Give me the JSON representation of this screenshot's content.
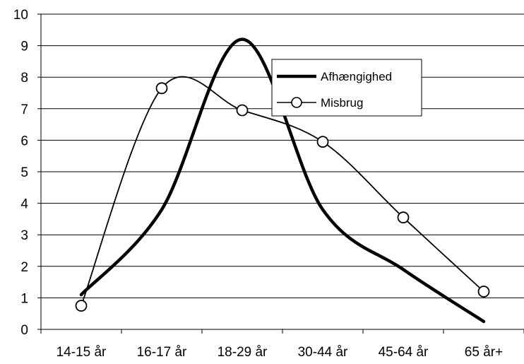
{
  "chart_data": {
    "type": "line",
    "categories": [
      "14-15 år",
      "16-17 år",
      "18-29 år",
      "30-44 år",
      "45-64 år",
      "65 år+"
    ],
    "ylim": [
      0,
      10
    ],
    "yticks": [
      0,
      1,
      2,
      3,
      4,
      5,
      6,
      7,
      8,
      9,
      10
    ],
    "grid": true,
    "legend_position": "upper-center",
    "series": [
      {
        "name": "Afhængighed",
        "values": [
          1.1,
          3.8,
          9.2,
          3.8,
          1.9,
          0.25
        ],
        "style": "thick-line",
        "color": "#000000"
      },
      {
        "name": "Misbrug",
        "values": [
          0.75,
          7.65,
          6.95,
          5.95,
          3.55,
          1.2
        ],
        "style": "thin-line-circle-markers",
        "color": "#000000"
      }
    ]
  }
}
